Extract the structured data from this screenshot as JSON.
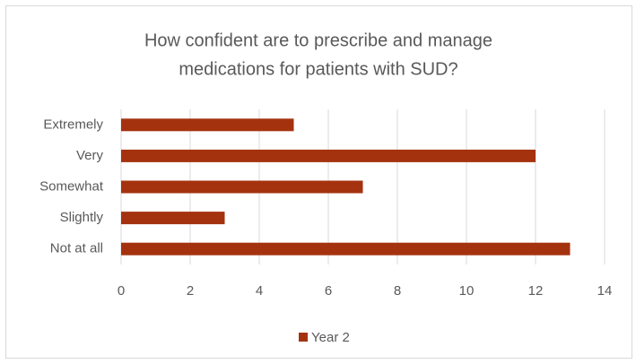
{
  "chart_data": {
    "type": "hbar",
    "title": [
      "How confident are to prescribe and manage",
      "medications for patients with SUD?"
    ],
    "categories": [
      "Extremely",
      "Very",
      "Somewhat",
      "Slightly",
      "Not at all"
    ],
    "series": [
      {
        "name": "Year 2",
        "color": "#a5320f",
        "values": [
          5,
          12,
          7,
          3,
          13
        ]
      }
    ],
    "xlim": [
      0,
      14
    ],
    "xticks": [
      0,
      2,
      4,
      6,
      8,
      10,
      12,
      14
    ],
    "grid": true,
    "legend": "bottom"
  }
}
